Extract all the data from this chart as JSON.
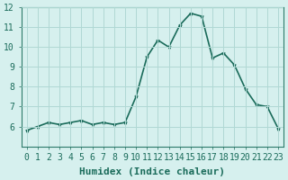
{
  "x": [
    0,
    1,
    2,
    3,
    4,
    5,
    6,
    7,
    8,
    9,
    10,
    11,
    12,
    13,
    14,
    15,
    16,
    17,
    18,
    19,
    20,
    21,
    22,
    23
  ],
  "y": [
    5.8,
    6.0,
    6.2,
    6.1,
    6.2,
    6.3,
    6.1,
    6.2,
    6.1,
    6.2,
    7.5,
    9.5,
    10.35,
    10.0,
    11.1,
    11.7,
    11.55,
    9.45,
    9.7,
    9.1,
    7.9,
    7.1,
    7.0,
    5.9
  ],
  "xlabel": "Humidex (Indice chaleur)",
  "ylim": [
    5,
    12
  ],
  "xlim": [
    0,
    23
  ],
  "yticks": [
    6,
    7,
    8,
    9,
    10,
    11,
    12
  ],
  "xticks": [
    0,
    1,
    2,
    3,
    4,
    5,
    6,
    7,
    8,
    9,
    10,
    11,
    12,
    13,
    14,
    15,
    16,
    17,
    18,
    19,
    20,
    21,
    22,
    23
  ],
  "line_color": "#1a6b5a",
  "marker_color": "#1a6b5a",
  "bg_color": "#d6f0ee",
  "grid_color": "#b0d8d4",
  "axis_color": "#2d7a6a",
  "tick_color": "#1a6b5a",
  "xlabel_fontsize": 8,
  "tick_fontsize": 7,
  "linewidth": 1.2,
  "markersize": 3
}
